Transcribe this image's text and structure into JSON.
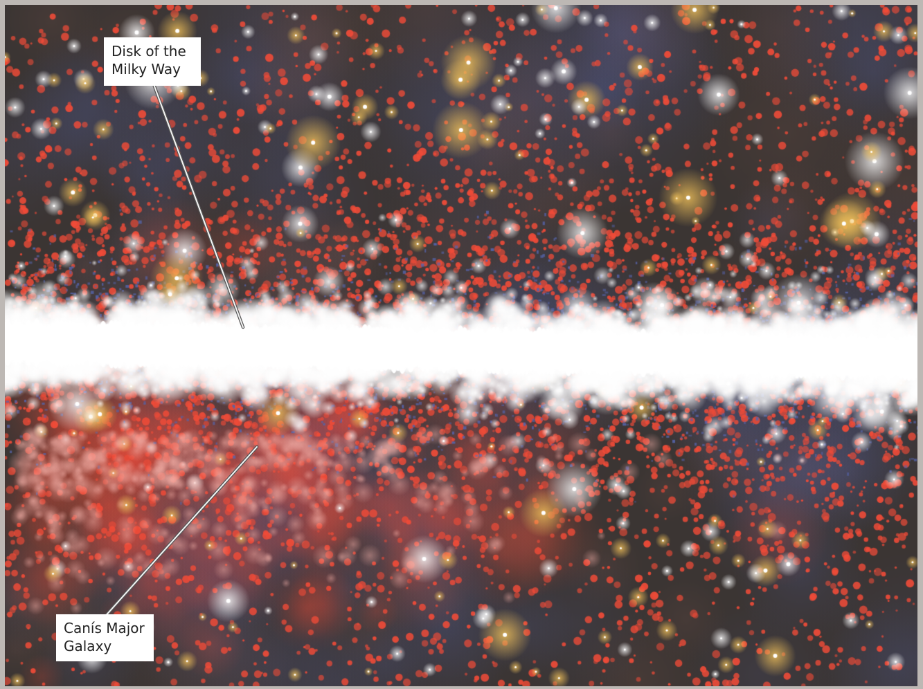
{
  "image": {
    "subject": "milky-way-galactic-plane",
    "palette": {
      "background": "#3b3533",
      "red_stars": "#ef4b38",
      "blue_haze": "#5563a8",
      "yellow_stars": "#f3c25a",
      "disk_core": "#ffffff",
      "frame": "#bdb8b4"
    }
  },
  "labels": {
    "disk": {
      "line1": "Disk of the",
      "line2": "Milky Way"
    },
    "canis": {
      "line1": "Canís Major",
      "line2": "Galaxy"
    }
  }
}
